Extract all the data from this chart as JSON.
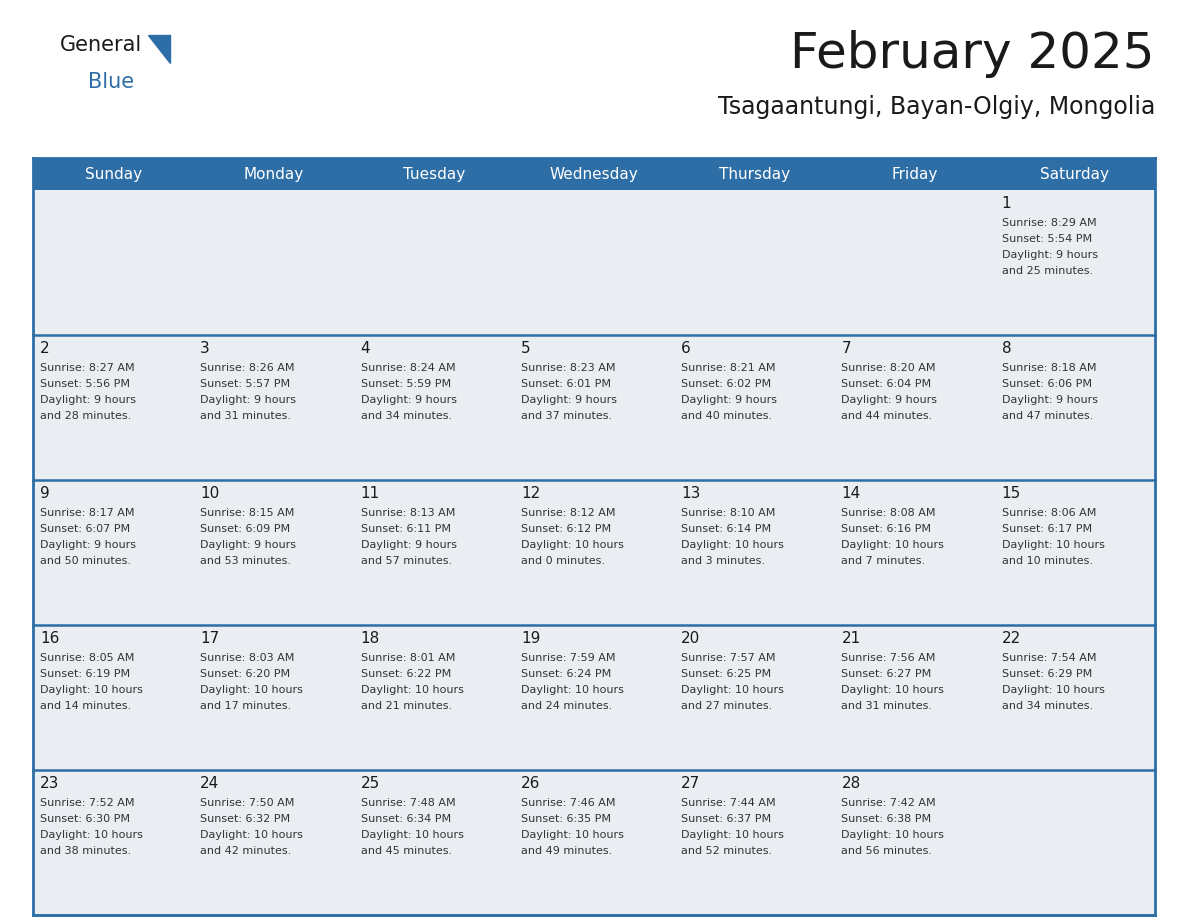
{
  "title": "February 2025",
  "subtitle": "Tsagaantungi, Bayan-Olgiy, Mongolia",
  "header_bg": "#2E6EA6",
  "header_text": "#FFFFFF",
  "cell_bg": "#EAEEF2",
  "cell_bg_last_row": "#F5F5F5",
  "separator_color": "#2E6EA6",
  "border_color": "#2E6EA6",
  "day_headers": [
    "Sunday",
    "Monday",
    "Tuesday",
    "Wednesday",
    "Thursday",
    "Friday",
    "Saturday"
  ],
  "days": [
    {
      "day": 1,
      "col": 6,
      "row": 0,
      "sunrise": "8:29 AM",
      "sunset": "5:54 PM",
      "daylight_hours": 9,
      "daylight_minutes": 25
    },
    {
      "day": 2,
      "col": 0,
      "row": 1,
      "sunrise": "8:27 AM",
      "sunset": "5:56 PM",
      "daylight_hours": 9,
      "daylight_minutes": 28
    },
    {
      "day": 3,
      "col": 1,
      "row": 1,
      "sunrise": "8:26 AM",
      "sunset": "5:57 PM",
      "daylight_hours": 9,
      "daylight_minutes": 31
    },
    {
      "day": 4,
      "col": 2,
      "row": 1,
      "sunrise": "8:24 AM",
      "sunset": "5:59 PM",
      "daylight_hours": 9,
      "daylight_minutes": 34
    },
    {
      "day": 5,
      "col": 3,
      "row": 1,
      "sunrise": "8:23 AM",
      "sunset": "6:01 PM",
      "daylight_hours": 9,
      "daylight_minutes": 37
    },
    {
      "day": 6,
      "col": 4,
      "row": 1,
      "sunrise": "8:21 AM",
      "sunset": "6:02 PM",
      "daylight_hours": 9,
      "daylight_minutes": 40
    },
    {
      "day": 7,
      "col": 5,
      "row": 1,
      "sunrise": "8:20 AM",
      "sunset": "6:04 PM",
      "daylight_hours": 9,
      "daylight_minutes": 44
    },
    {
      "day": 8,
      "col": 6,
      "row": 1,
      "sunrise": "8:18 AM",
      "sunset": "6:06 PM",
      "daylight_hours": 9,
      "daylight_minutes": 47
    },
    {
      "day": 9,
      "col": 0,
      "row": 2,
      "sunrise": "8:17 AM",
      "sunset": "6:07 PM",
      "daylight_hours": 9,
      "daylight_minutes": 50
    },
    {
      "day": 10,
      "col": 1,
      "row": 2,
      "sunrise": "8:15 AM",
      "sunset": "6:09 PM",
      "daylight_hours": 9,
      "daylight_minutes": 53
    },
    {
      "day": 11,
      "col": 2,
      "row": 2,
      "sunrise": "8:13 AM",
      "sunset": "6:11 PM",
      "daylight_hours": 9,
      "daylight_minutes": 57
    },
    {
      "day": 12,
      "col": 3,
      "row": 2,
      "sunrise": "8:12 AM",
      "sunset": "6:12 PM",
      "daylight_hours": 10,
      "daylight_minutes": 0
    },
    {
      "day": 13,
      "col": 4,
      "row": 2,
      "sunrise": "8:10 AM",
      "sunset": "6:14 PM",
      "daylight_hours": 10,
      "daylight_minutes": 3
    },
    {
      "day": 14,
      "col": 5,
      "row": 2,
      "sunrise": "8:08 AM",
      "sunset": "6:16 PM",
      "daylight_hours": 10,
      "daylight_minutes": 7
    },
    {
      "day": 15,
      "col": 6,
      "row": 2,
      "sunrise": "8:06 AM",
      "sunset": "6:17 PM",
      "daylight_hours": 10,
      "daylight_minutes": 10
    },
    {
      "day": 16,
      "col": 0,
      "row": 3,
      "sunrise": "8:05 AM",
      "sunset": "6:19 PM",
      "daylight_hours": 10,
      "daylight_minutes": 14
    },
    {
      "day": 17,
      "col": 1,
      "row": 3,
      "sunrise": "8:03 AM",
      "sunset": "6:20 PM",
      "daylight_hours": 10,
      "daylight_minutes": 17
    },
    {
      "day": 18,
      "col": 2,
      "row": 3,
      "sunrise": "8:01 AM",
      "sunset": "6:22 PM",
      "daylight_hours": 10,
      "daylight_minutes": 21
    },
    {
      "day": 19,
      "col": 3,
      "row": 3,
      "sunrise": "7:59 AM",
      "sunset": "6:24 PM",
      "daylight_hours": 10,
      "daylight_minutes": 24
    },
    {
      "day": 20,
      "col": 4,
      "row": 3,
      "sunrise": "7:57 AM",
      "sunset": "6:25 PM",
      "daylight_hours": 10,
      "daylight_minutes": 27
    },
    {
      "day": 21,
      "col": 5,
      "row": 3,
      "sunrise": "7:56 AM",
      "sunset": "6:27 PM",
      "daylight_hours": 10,
      "daylight_minutes": 31
    },
    {
      "day": 22,
      "col": 6,
      "row": 3,
      "sunrise": "7:54 AM",
      "sunset": "6:29 PM",
      "daylight_hours": 10,
      "daylight_minutes": 34
    },
    {
      "day": 23,
      "col": 0,
      "row": 4,
      "sunrise": "7:52 AM",
      "sunset": "6:30 PM",
      "daylight_hours": 10,
      "daylight_minutes": 38
    },
    {
      "day": 24,
      "col": 1,
      "row": 4,
      "sunrise": "7:50 AM",
      "sunset": "6:32 PM",
      "daylight_hours": 10,
      "daylight_minutes": 42
    },
    {
      "day": 25,
      "col": 2,
      "row": 4,
      "sunrise": "7:48 AM",
      "sunset": "6:34 PM",
      "daylight_hours": 10,
      "daylight_minutes": 45
    },
    {
      "day": 26,
      "col": 3,
      "row": 4,
      "sunrise": "7:46 AM",
      "sunset": "6:35 PM",
      "daylight_hours": 10,
      "daylight_minutes": 49
    },
    {
      "day": 27,
      "col": 4,
      "row": 4,
      "sunrise": "7:44 AM",
      "sunset": "6:37 PM",
      "daylight_hours": 10,
      "daylight_minutes": 52
    },
    {
      "day": 28,
      "col": 5,
      "row": 4,
      "sunrise": "7:42 AM",
      "sunset": "6:38 PM",
      "daylight_hours": 10,
      "daylight_minutes": 56
    }
  ],
  "num_rows": 5,
  "num_cols": 7,
  "logo_triangle_color": "#2E6EA6",
  "title_fontsize": 36,
  "subtitle_fontsize": 17,
  "header_fontsize": 11,
  "day_num_fontsize": 11,
  "cell_text_fontsize": 8
}
